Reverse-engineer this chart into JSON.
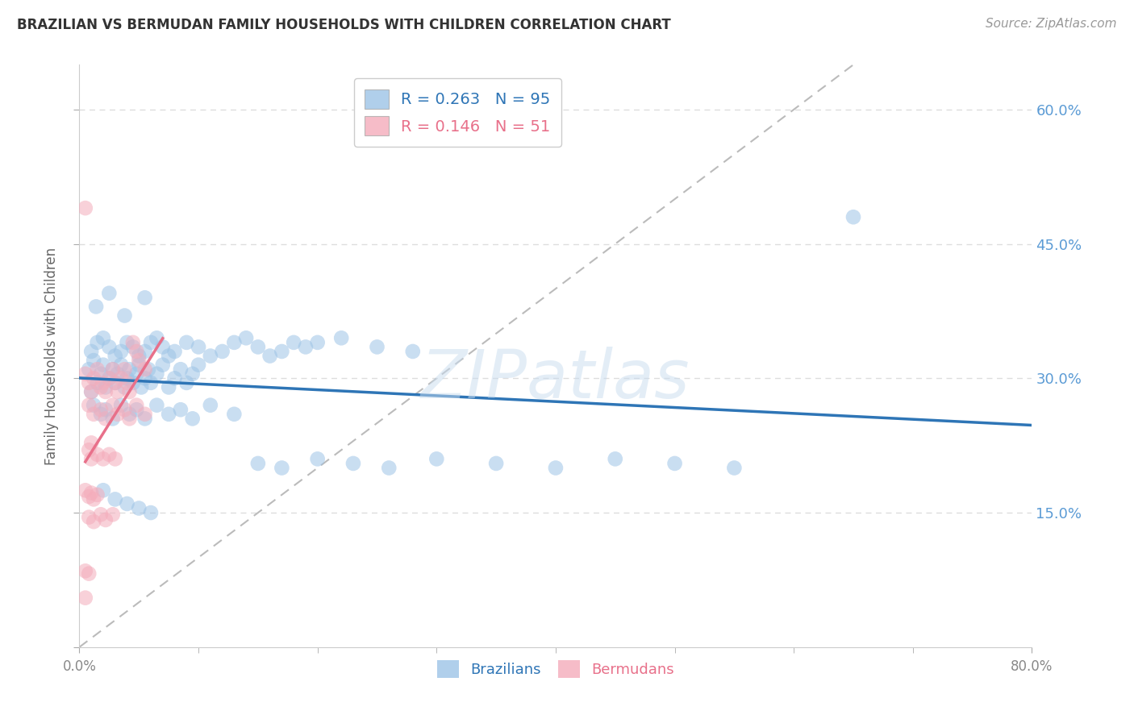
{
  "title": "BRAZILIAN VS BERMUDAN FAMILY HOUSEHOLDS WITH CHILDREN CORRELATION CHART",
  "source": "Source: ZipAtlas.com",
  "ylabel": "Family Households with Children",
  "x_min": 0.0,
  "x_max": 0.8,
  "y_min": 0.0,
  "y_max": 0.65,
  "y_ticks": [
    0.0,
    0.15,
    0.3,
    0.45,
    0.6
  ],
  "y_tick_labels_right": [
    "",
    "15.0%",
    "30.0%",
    "45.0%",
    "60.0%"
  ],
  "blue_color": "#9DC3E6",
  "pink_color": "#F4ACBB",
  "blue_line_color": "#2E75B6",
  "pink_line_color": "#E8708A",
  "dashed_line_color": "#BBBBBB",
  "grid_color": "#DDDDDD",
  "right_tick_color": "#5B9BD5",
  "blue_R": 0.263,
  "blue_N": 95,
  "pink_R": 0.146,
  "pink_N": 51,
  "blue_scatter_x": [
    0.008,
    0.01,
    0.012,
    0.015,
    0.018,
    0.02,
    0.022,
    0.025,
    0.028,
    0.03,
    0.032,
    0.035,
    0.038,
    0.04,
    0.042,
    0.045,
    0.048,
    0.05,
    0.052,
    0.055,
    0.058,
    0.06,
    0.065,
    0.07,
    0.075,
    0.08,
    0.085,
    0.09,
    0.095,
    0.1,
    0.01,
    0.015,
    0.02,
    0.025,
    0.03,
    0.035,
    0.04,
    0.045,
    0.05,
    0.055,
    0.06,
    0.065,
    0.07,
    0.075,
    0.08,
    0.09,
    0.1,
    0.11,
    0.12,
    0.13,
    0.14,
    0.15,
    0.16,
    0.17,
    0.18,
    0.19,
    0.2,
    0.22,
    0.25,
    0.28,
    0.012,
    0.018,
    0.022,
    0.028,
    0.035,
    0.042,
    0.048,
    0.055,
    0.065,
    0.075,
    0.085,
    0.095,
    0.11,
    0.13,
    0.15,
    0.17,
    0.2,
    0.23,
    0.26,
    0.3,
    0.35,
    0.4,
    0.45,
    0.5,
    0.55,
    0.02,
    0.03,
    0.04,
    0.05,
    0.06,
    0.014,
    0.025,
    0.038,
    0.055,
    0.65
  ],
  "blue_scatter_y": [
    0.31,
    0.285,
    0.32,
    0.295,
    0.305,
    0.315,
    0.29,
    0.3,
    0.31,
    0.295,
    0.305,
    0.315,
    0.29,
    0.3,
    0.31,
    0.295,
    0.305,
    0.315,
    0.29,
    0.3,
    0.31,
    0.295,
    0.305,
    0.315,
    0.29,
    0.3,
    0.31,
    0.295,
    0.305,
    0.315,
    0.33,
    0.34,
    0.345,
    0.335,
    0.325,
    0.33,
    0.34,
    0.335,
    0.325,
    0.33,
    0.34,
    0.345,
    0.335,
    0.325,
    0.33,
    0.34,
    0.335,
    0.325,
    0.33,
    0.34,
    0.345,
    0.335,
    0.325,
    0.33,
    0.34,
    0.335,
    0.34,
    0.345,
    0.335,
    0.33,
    0.27,
    0.26,
    0.265,
    0.255,
    0.27,
    0.26,
    0.265,
    0.255,
    0.27,
    0.26,
    0.265,
    0.255,
    0.27,
    0.26,
    0.205,
    0.2,
    0.21,
    0.205,
    0.2,
    0.21,
    0.205,
    0.2,
    0.21,
    0.205,
    0.2,
    0.175,
    0.165,
    0.16,
    0.155,
    0.15,
    0.38,
    0.395,
    0.37,
    0.39,
    0.48
  ],
  "pink_scatter_x": [
    0.005,
    0.008,
    0.01,
    0.012,
    0.015,
    0.018,
    0.02,
    0.022,
    0.025,
    0.028,
    0.03,
    0.032,
    0.035,
    0.038,
    0.04,
    0.042,
    0.045,
    0.048,
    0.05,
    0.055,
    0.008,
    0.012,
    0.018,
    0.022,
    0.028,
    0.032,
    0.038,
    0.042,
    0.048,
    0.055,
    0.01,
    0.015,
    0.02,
    0.025,
    0.03,
    0.008,
    0.012,
    0.018,
    0.022,
    0.028,
    0.005,
    0.008,
    0.01,
    0.012,
    0.015,
    0.005,
    0.008,
    0.01,
    0.005,
    0.008,
    0.005
  ],
  "pink_scatter_y": [
    0.305,
    0.295,
    0.285,
    0.3,
    0.31,
    0.29,
    0.295,
    0.285,
    0.3,
    0.31,
    0.295,
    0.285,
    0.3,
    0.31,
    0.295,
    0.285,
    0.34,
    0.33,
    0.32,
    0.31,
    0.27,
    0.26,
    0.265,
    0.255,
    0.27,
    0.26,
    0.265,
    0.255,
    0.27,
    0.26,
    0.21,
    0.215,
    0.21,
    0.215,
    0.21,
    0.145,
    0.14,
    0.148,
    0.142,
    0.148,
    0.175,
    0.168,
    0.172,
    0.165,
    0.17,
    0.49,
    0.22,
    0.228,
    0.085,
    0.082,
    0.055
  ]
}
